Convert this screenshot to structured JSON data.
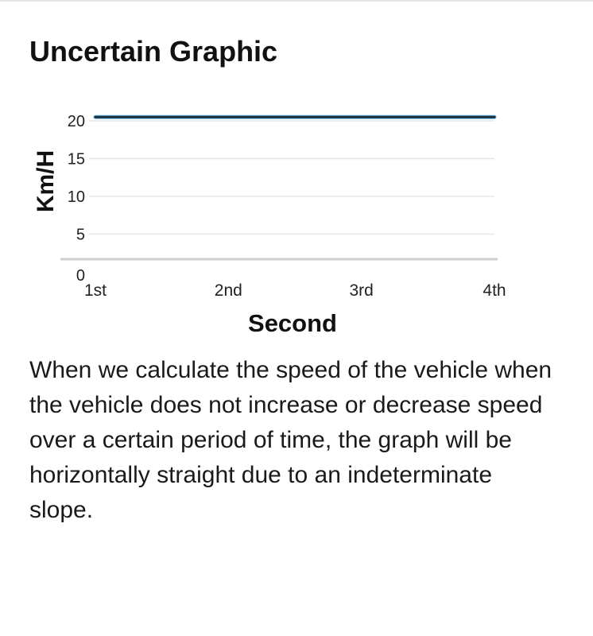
{
  "card": {
    "title": "Uncertain Graphic",
    "description": "When we calculate the speed of the vehicle when the vehicle does not increase or decrease speed over a certain period of time, the graph will be horizontally straight due to an indeterminate slope."
  },
  "chart_data": {
    "type": "line",
    "title": "",
    "xlabel": "Second",
    "ylabel": "Km/H",
    "categories": [
      "1st",
      "2nd",
      "3rd",
      "4th"
    ],
    "series": [
      {
        "values": [
          20.5,
          20.5,
          20.5,
          20.5
        ]
      }
    ],
    "ylim": [
      0,
      20
    ],
    "yticks": [
      0,
      5,
      10,
      15,
      20
    ],
    "grid": true,
    "legend": "none",
    "colors": {
      "line": "#1b2f3a",
      "line_highlight": "#3aa0d8",
      "grid": "#e6e6e6",
      "axis": "#cfcfcf"
    }
  }
}
